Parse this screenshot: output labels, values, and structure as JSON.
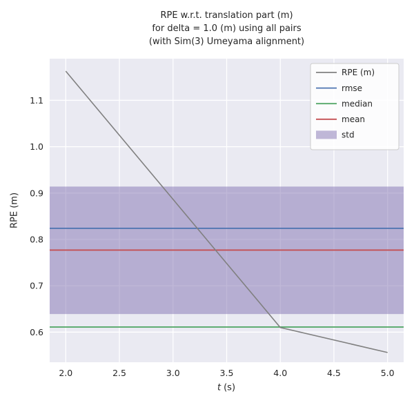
{
  "figure": {
    "title_lines": [
      "RPE w.r.t. translation part (m)",
      "for delta = 1.0 (m) using all pairs",
      "(with Sim(3) Umeyama alignment)"
    ]
  },
  "axis": {
    "x_var": "t",
    "x_unit": "(s)",
    "ylabel": "RPE (m)"
  },
  "chart_data": {
    "type": "line",
    "title": "RPE w.r.t. translation part (m)\nfor delta = 1.0 (m) using all pairs\n(with Sim(3) Umeyama alignment)",
    "xlabel": "t (s)",
    "ylabel": "RPE (m)",
    "xlim": [
      1.85,
      5.15
    ],
    "ylim": [
      0.535,
      1.19
    ],
    "x_ticks": [
      2.0,
      2.5,
      3.0,
      3.5,
      4.0,
      4.5,
      5.0
    ],
    "y_ticks": [
      0.6,
      0.7,
      0.8,
      0.9,
      1.0,
      1.1
    ],
    "grid": true,
    "legend_position": "upper right",
    "plot_bg": "#eaeaf2",
    "grid_color": "#ffffff",
    "text_color": "#262626",
    "legend_bg": "#ffffff",
    "legend_border": "#cccccc",
    "series": [
      {
        "name": "RPE (m)",
        "kind": "line",
        "color": "#808080",
        "x": [
          2.0,
          4.0,
          5.0
        ],
        "y": [
          1.163,
          0.61,
          0.556
        ]
      },
      {
        "name": "rmse",
        "kind": "hline",
        "color": "#4c72b0",
        "value": 0.824
      },
      {
        "name": "median",
        "kind": "hline",
        "color": "#55a868",
        "value": 0.611
      },
      {
        "name": "mean",
        "kind": "hline",
        "color": "#c44e52",
        "value": 0.777
      },
      {
        "name": "std",
        "kind": "band",
        "color": "#8172b2",
        "alpha": 0.5,
        "low": 0.639,
        "high": 0.914
      }
    ]
  }
}
